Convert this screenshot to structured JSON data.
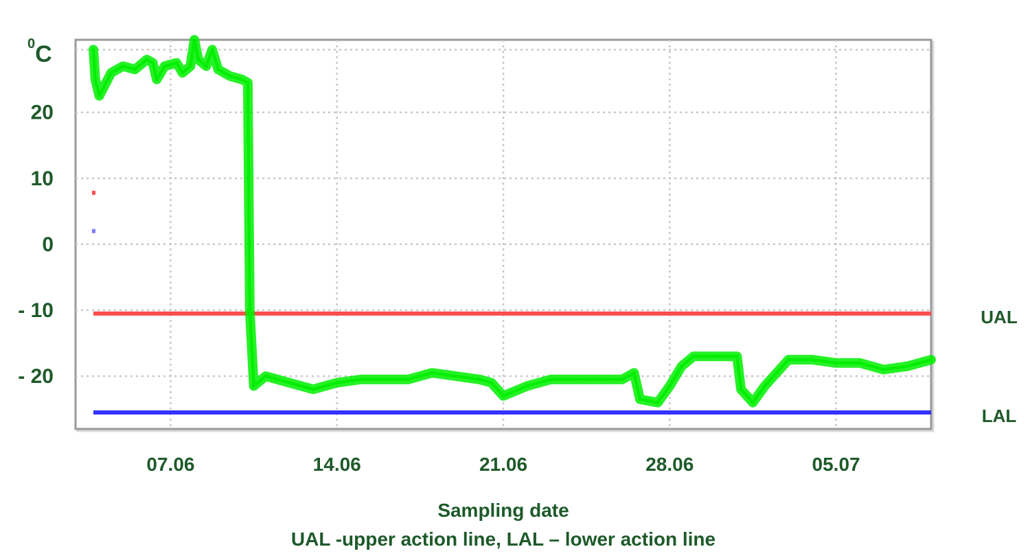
{
  "chart_data": {
    "type": "line",
    "unit_label": {
      "superscript": "0",
      "text": "C"
    },
    "xlabel": "Sampling date",
    "footnote": "UAL -upper action line, LAL – lower action line",
    "x_range": [
      "2023-06-03",
      "2023-07-09"
    ],
    "x_ticks": [
      {
        "date": "2023-06-07",
        "label": "07.06"
      },
      {
        "date": "2023-06-14",
        "label": "14.06"
      },
      {
        "date": "2023-06-21",
        "label": "21.06"
      },
      {
        "date": "2023-06-28",
        "label": "28.06"
      },
      {
        "date": "2023-07-05",
        "label": "05.07"
      }
    ],
    "ylim": [
      -28,
      31
    ],
    "y_ticks": [
      {
        "value": 20,
        "label": "20"
      },
      {
        "value": 10,
        "label": "10"
      },
      {
        "value": 0,
        "label": "0"
      },
      {
        "value": -10,
        "label": "- 10"
      },
      {
        "value": -20,
        "label": "- 20"
      }
    ],
    "grid": true,
    "colors": {
      "temperature": "#00ee00",
      "ual": "#ff4d4d",
      "lal": "#3333ff",
      "text": "#1e5a2a",
      "frame": "#999999",
      "grid": "#c8c8c8"
    },
    "reference_lines": [
      {
        "name": "UAL",
        "value": -10.5,
        "x_start": "2023-06-03 18:00",
        "x_end": "2023-07-09 00:00"
      },
      {
        "name": "LAL",
        "value": -25.5,
        "x_start": "2023-06-03 18:00",
        "x_end": "2023-07-09 00:00"
      }
    ],
    "series": [
      {
        "color": "#00ee00",
        "band": 1.2,
        "points": [
          [
            "2023-06-03 18:00",
            29.5
          ],
          [
            "2023-06-03 20:00",
            25.0
          ],
          [
            "2023-06-04 00:00",
            22.5
          ],
          [
            "2023-06-04 12:00",
            26.0
          ],
          [
            "2023-06-05 00:00",
            27.0
          ],
          [
            "2023-06-05 12:00",
            26.5
          ],
          [
            "2023-06-06 00:00",
            28.0
          ],
          [
            "2023-06-06 06:00",
            27.5
          ],
          [
            "2023-06-06 10:00",
            25.0
          ],
          [
            "2023-06-06 18:00",
            27.0
          ],
          [
            "2023-06-07 06:00",
            27.5
          ],
          [
            "2023-06-07 12:00",
            26.0
          ],
          [
            "2023-06-07 20:00",
            27.0
          ],
          [
            "2023-06-08 00:00",
            31.0
          ],
          [
            "2023-06-08 04:00",
            28.0
          ],
          [
            "2023-06-08 12:00",
            27.0
          ],
          [
            "2023-06-08 18:00",
            29.5
          ],
          [
            "2023-06-09 00:00",
            26.5
          ],
          [
            "2023-06-09 12:00",
            25.5
          ],
          [
            "2023-06-10 00:00",
            25.0
          ],
          [
            "2023-06-10 06:00",
            24.5
          ],
          [
            "2023-06-10 08:00",
            -10.0
          ],
          [
            "2023-06-10 12:00",
            -21.5
          ],
          [
            "2023-06-11 00:00",
            -20.0
          ],
          [
            "2023-06-12 00:00",
            -21.0
          ],
          [
            "2023-06-13 00:00",
            -22.0
          ],
          [
            "2023-06-14 00:00",
            -21.0
          ],
          [
            "2023-06-15 00:00",
            -20.5
          ],
          [
            "2023-06-16 00:00",
            -20.5
          ],
          [
            "2023-06-17 00:00",
            -20.5
          ],
          [
            "2023-06-18 00:00",
            -19.5
          ],
          [
            "2023-06-19 00:00",
            -20.0
          ],
          [
            "2023-06-20 00:00",
            -20.5
          ],
          [
            "2023-06-20 12:00",
            -21.0
          ],
          [
            "2023-06-21 00:00",
            -23.0
          ],
          [
            "2023-06-22 00:00",
            -21.5
          ],
          [
            "2023-06-23 00:00",
            -20.5
          ],
          [
            "2023-06-24 00:00",
            -20.5
          ],
          [
            "2023-06-25 00:00",
            -20.5
          ],
          [
            "2023-06-26 00:00",
            -20.5
          ],
          [
            "2023-06-26 12:00",
            -19.5
          ],
          [
            "2023-06-26 18:00",
            -23.5
          ],
          [
            "2023-06-27 12:00",
            -24.0
          ],
          [
            "2023-06-28 00:00",
            -21.5
          ],
          [
            "2023-06-28 12:00",
            -18.5
          ],
          [
            "2023-06-29 00:00",
            -17.0
          ],
          [
            "2023-06-30 00:00",
            -17.0
          ],
          [
            "2023-06-30 20:00",
            -17.0
          ],
          [
            "2023-07-01 00:00",
            -22.0
          ],
          [
            "2023-07-01 12:00",
            -24.0
          ],
          [
            "2023-07-02 00:00",
            -21.5
          ],
          [
            "2023-07-02 12:00",
            -19.5
          ],
          [
            "2023-07-03 00:00",
            -17.5
          ],
          [
            "2023-07-04 00:00",
            -17.5
          ],
          [
            "2023-07-05 00:00",
            -18.0
          ],
          [
            "2023-07-06 00:00",
            -18.0
          ],
          [
            "2023-07-07 00:00",
            -19.0
          ],
          [
            "2023-07-08 00:00",
            -18.5
          ],
          [
            "2023-07-09 00:00",
            -17.5
          ]
        ]
      }
    ],
    "legend_marks": [
      {
        "color": "#ff4d4d",
        "at": "2023-06-03 18:00",
        "value": 7.8
      },
      {
        "color": "#7d7dff",
        "at": "2023-06-03 18:00",
        "value": 2.0
      }
    ]
  }
}
